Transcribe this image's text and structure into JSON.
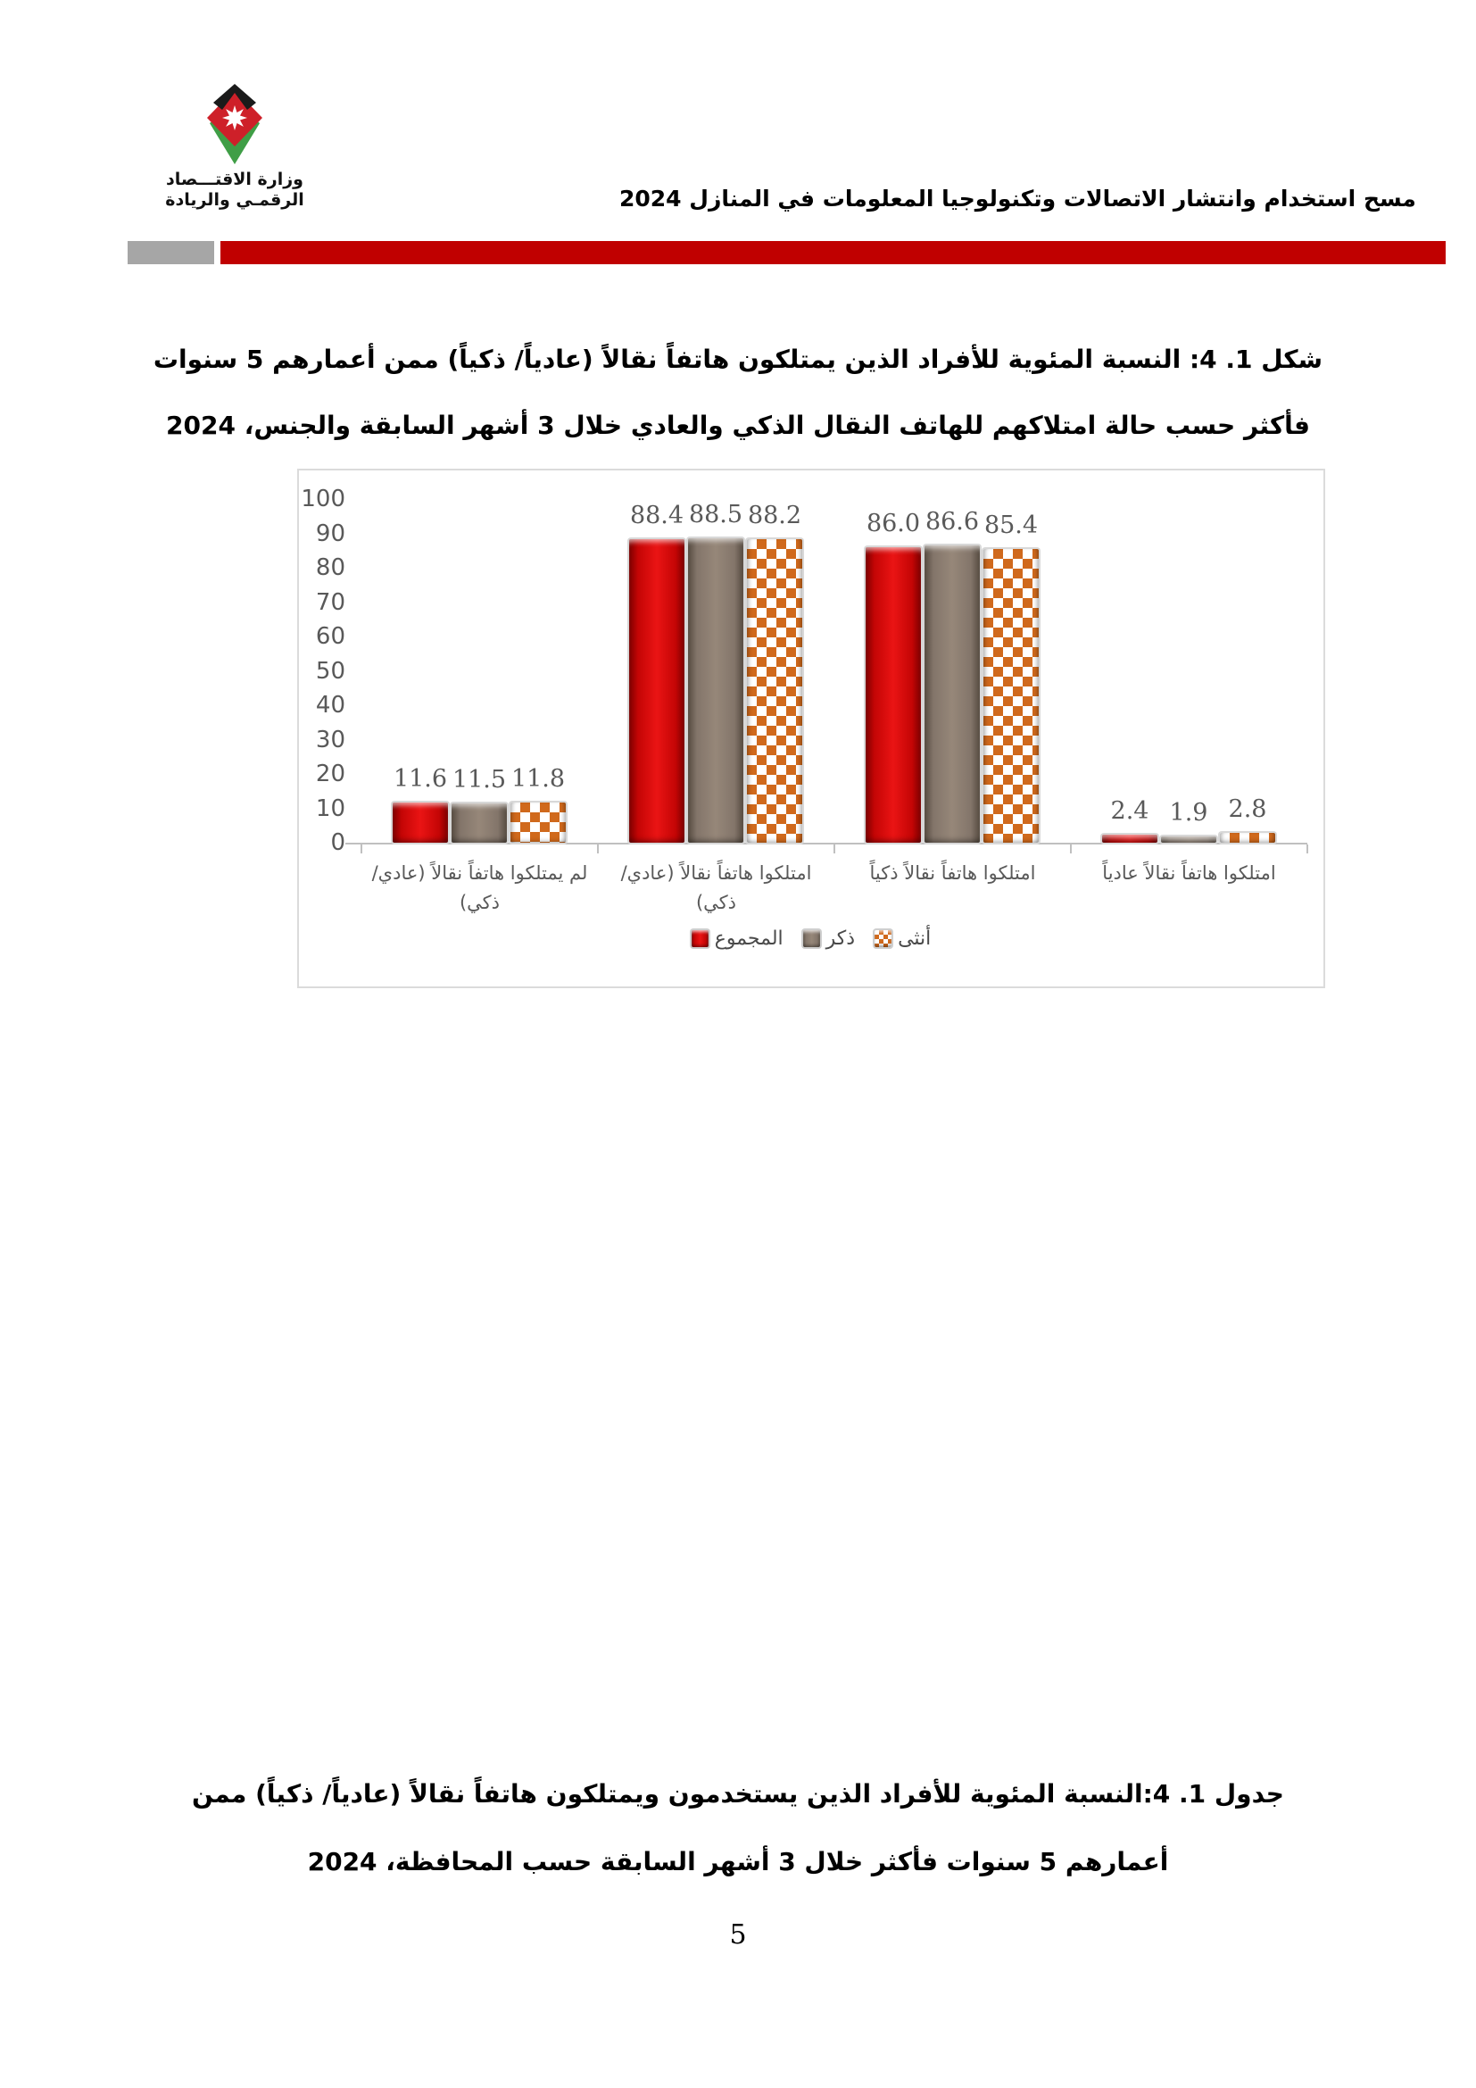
{
  "page": {
    "page_number": "5"
  },
  "header": {
    "survey_title": "مسح استخدام وانتشار الاتصالات وتكنولوجيا المعلومات في المنازل 2024",
    "logo": {
      "ministry_line1": "وزارة الاقتـــصاد",
      "ministry_line2": "الرقمـي والريادة"
    },
    "accent_color": "#c00000",
    "gray_block_color": "#a6a6a6"
  },
  "figure": {
    "title_line1": "شكل 1. 4: النسبة المئوية للأفراد الذين يمتلكون هاتفاً نقالاً (عادياً/ ذكياً) ممن أعمارهم 5 سنوات",
    "title_line2": "فأكثر حسب حالة امتلاكهم للهاتف النقال الذكي والعادي خلال 3 أشهر السابقة والجنس، 2024"
  },
  "chart_data": {
    "type": "bar",
    "title": "",
    "categories": [
      "لم يمتلكوا هاتفاً نقالاً (عادي/ ذكي)",
      "امتلكوا هاتفاً نقالاً (عادي/ ذكي)",
      "امتلكوا هاتفاً نقالاً ذكياً",
      "امتلكوا هاتفاً نقالاً عادياً"
    ],
    "series": [
      {
        "name": "المجموع",
        "style": "total",
        "color": "#c00000",
        "pattern": "solid",
        "values": [
          11.6,
          88.4,
          86.0,
          2.4
        ]
      },
      {
        "name": "ذكر",
        "style": "male",
        "color": "#8a7a6d",
        "pattern": "solid",
        "values": [
          11.5,
          88.5,
          86.6,
          1.9
        ]
      },
      {
        "name": "أنثى",
        "style": "female",
        "color": "#d0691c",
        "pattern": "checker",
        "values": [
          11.8,
          88.2,
          85.4,
          2.8
        ]
      }
    ],
    "ylim": [
      0,
      100
    ],
    "yticks": [
      0,
      10,
      20,
      30,
      40,
      50,
      60,
      70,
      80,
      90,
      100
    ],
    "value_label_decimals": 1,
    "legend_position": "bottom-inside",
    "grid": false
  },
  "table_caption": {
    "line1": "جدول 1. 4:النسبة المئوية للأفراد الذين يستخدمون ويمتلكون هاتفاً نقالاً (عادياً/ ذكياً) ممن",
    "line2": "أعمارهم 5 سنوات فأكثر خلال 3 أشهر السابقة حسب المحافظة، 2024"
  }
}
